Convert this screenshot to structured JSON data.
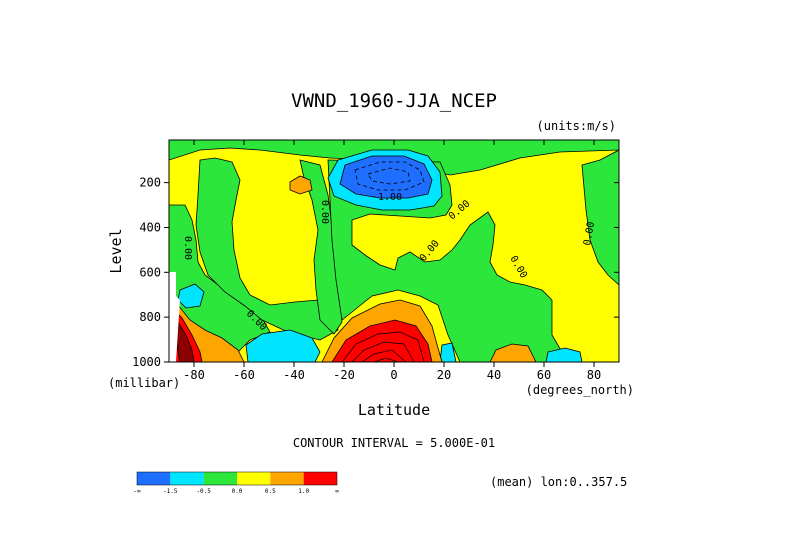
{
  "chart_data": {
    "type": "contour",
    "title": "VWND_1960-JJA_NCEP",
    "units_label": "(units:m/s)",
    "xlabel": "Latitude",
    "xunits": "(degrees_north)",
    "ylabel": "Level",
    "yunits": "(millibar)",
    "xlim": [
      -90,
      90
    ],
    "ylim": [
      1000,
      10
    ],
    "y_inverted": true,
    "x_ticks": [
      -80,
      -60,
      -40,
      -20,
      0,
      20,
      40,
      60,
      80
    ],
    "y_ticks": [
      200,
      400,
      600,
      800,
      1000
    ],
    "contour_interval_text": "CONTOUR INTERVAL = 5.000E-01",
    "mean_text": "(mean) lon:0..357.5",
    "contour_labels": [
      "-1.00",
      "0.00"
    ],
    "colorbar": {
      "colors": [
        "#1e6eff",
        "#00e5ff",
        "#2ce63c",
        "#ffff00",
        "#ffa500",
        "#ff0000"
      ],
      "ticks": [
        "-∞",
        "-1.5",
        "-0.5",
        "0.0",
        "0.5",
        "1.0",
        "∞"
      ]
    }
  }
}
